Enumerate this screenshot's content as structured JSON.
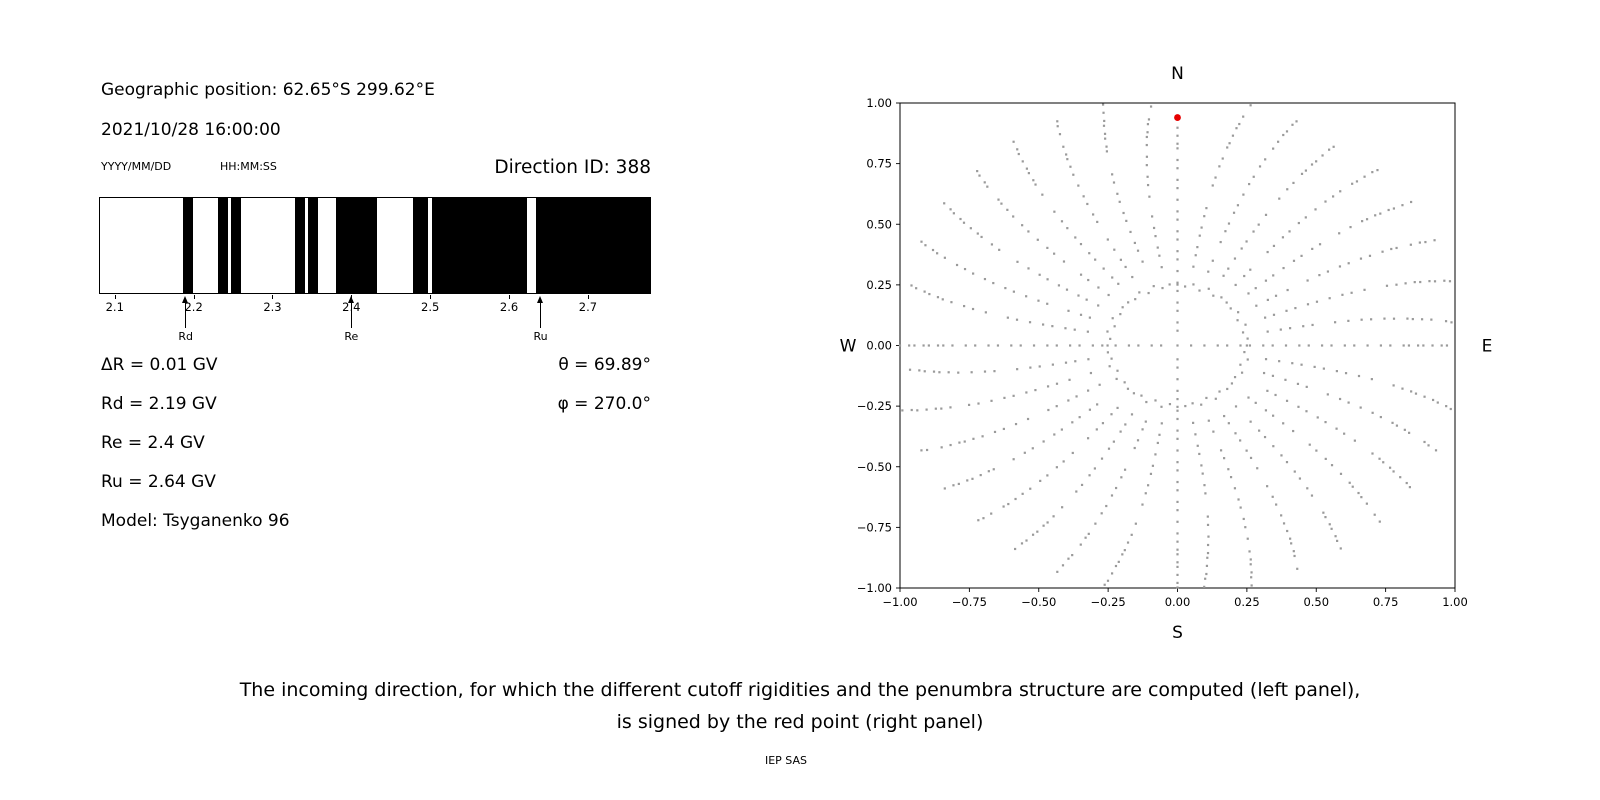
{
  "left_panel": {
    "geo_position": "Geographic position: 62.65°S 299.62°E",
    "datetime": "2021/10/28 16:00:00",
    "date_format": "YYYY/MM/DD",
    "time_format": "HH:MM:SS",
    "direction_id": "Direction ID: 388",
    "info_left": [
      "ΔR = 0.01 GV",
      "Rd = 2.19 GV",
      "Re = 2.4 GV",
      "Ru = 2.64 GV",
      "Model: Tsyganenko 96"
    ],
    "info_right": [
      "θ = 69.89°",
      "φ = 270.0°"
    ]
  },
  "caption": {
    "line1": "The incoming direction, for which the different cutoff rigidities and the penumbra structure are computed (left panel),",
    "line2": "is signed by the red point (right panel)"
  },
  "credit": "IEP SAS",
  "chart_data": [
    {
      "type": "bar",
      "title": "",
      "xlabel": "",
      "ylabel": "",
      "x_range": [
        2.08,
        2.78
      ],
      "x_ticks": [
        2.1,
        2.2,
        2.3,
        2.4,
        2.5,
        2.6,
        2.7
      ],
      "x_tick_labels": [
        "2.1",
        "2.2",
        "2.3",
        "2.4",
        "2.5",
        "2.6",
        "2.7"
      ],
      "black_bands_gv": [
        [
          2.186,
          2.199
        ],
        [
          2.23,
          2.243
        ],
        [
          2.247,
          2.259
        ],
        [
          2.328,
          2.341
        ],
        [
          2.345,
          2.357
        ],
        [
          2.38,
          2.433
        ],
        [
          2.478,
          2.497
        ],
        [
          2.502,
          2.624
        ],
        [
          2.635,
          2.78
        ]
      ],
      "band_color": "#000000",
      "annotations": [
        {
          "label": "Rd",
          "x": 2.19
        },
        {
          "label": "Re",
          "x": 2.4
        },
        {
          "label": "Ru",
          "x": 2.64
        }
      ]
    },
    {
      "type": "scatter",
      "title": "",
      "x_range": [
        -1.0,
        1.0
      ],
      "y_range": [
        -1.0,
        1.0
      ],
      "x_ticks": [
        -1.0,
        -0.75,
        -0.5,
        -0.25,
        0.0,
        0.25,
        0.5,
        0.75,
        1.0
      ],
      "y_ticks": [
        -1.0,
        -0.75,
        -0.5,
        -0.25,
        0.0,
        0.25,
        0.5,
        0.75,
        1.0
      ],
      "x_tick_labels": [
        "−1.00",
        "−0.75",
        "−0.50",
        "−0.25",
        "0.00",
        "0.25",
        "0.50",
        "0.75",
        "1.00"
      ],
      "y_tick_labels": [
        "−1.00",
        "−0.75",
        "−0.50",
        "−0.25",
        "0.00",
        "0.25",
        "0.50",
        "0.75",
        "1.00"
      ],
      "direction_labels": {
        "top": "N",
        "bottom": "S",
        "left": "W",
        "right": "E"
      },
      "red_point": {
        "x": 0.0,
        "y": 0.94,
        "color": "#e60000"
      },
      "dots": {
        "color": "#9a9a9a",
        "spokes": 36,
        "spoke_r_min": 0.33,
        "spoke_r_max": 1.05,
        "cardinal_r_min": 0.055,
        "north_gap_r": 0.91,
        "ring_radius": 0.25,
        "ring_points": 56,
        "twist": -0.22,
        "center_dot": true
      }
    }
  ]
}
